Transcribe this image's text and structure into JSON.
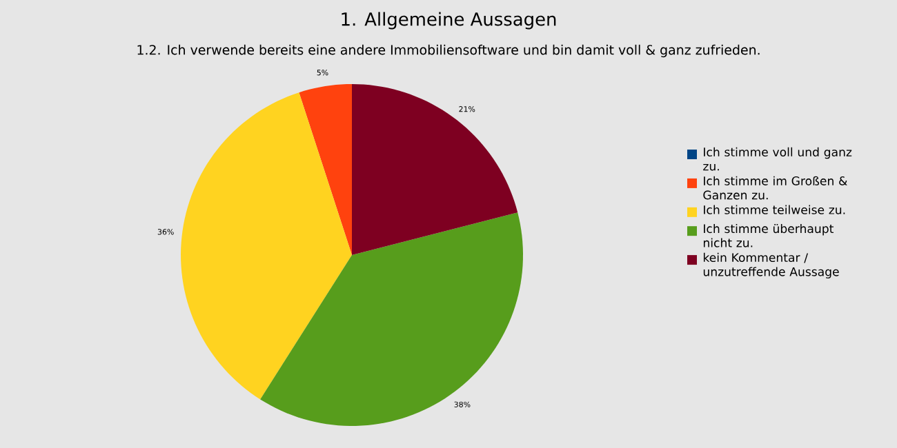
{
  "chart_data": {
    "type": "pie",
    "title": "1. Allgemeine Aussagen",
    "subtitle": "1.2. Ich verwende bereits eine andere Immobiliensoftware und bin damit voll & ganz zufrieden.",
    "categories": [
      "Ich stimme voll und ganz zu.",
      "Ich stimme im Großen & Ganzen zu.",
      "Ich stimme teilweise zu.",
      "Ich stimme überhaupt nicht zu.",
      "kein Kommentar / unzutreffende Aussage"
    ],
    "values": [
      0,
      5,
      36,
      38,
      21
    ],
    "colors": [
      "#004586",
      "#ff420e",
      "#ffd320",
      "#579d1c",
      "#7e0021"
    ],
    "value_labels": [
      null,
      "5%",
      "36%",
      "38%",
      "21%"
    ],
    "legend": "right"
  }
}
